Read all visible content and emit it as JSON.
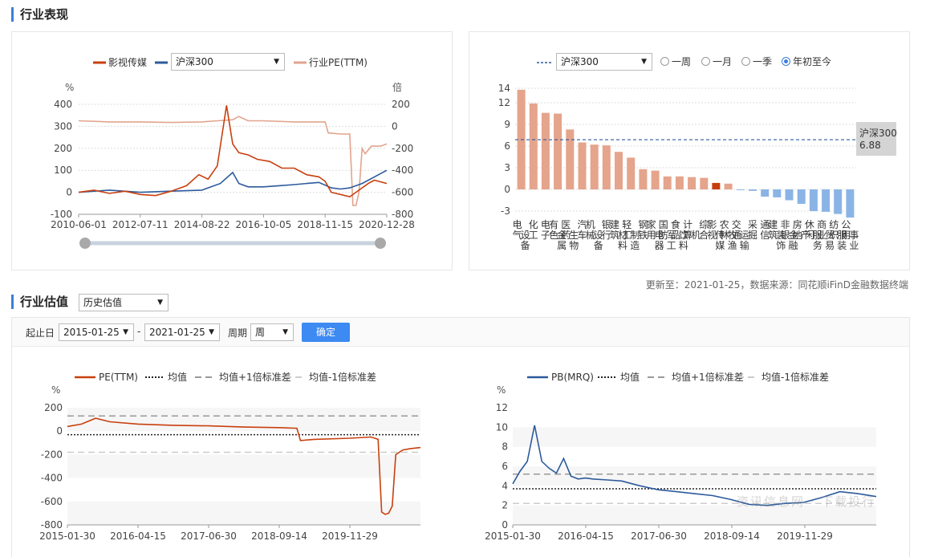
{
  "sections": {
    "performance_title": "行业表现",
    "valuation_title": "行业估值",
    "valuation_select": "历史估值"
  },
  "left_panel": {
    "legend": {
      "industry": "影视传媒",
      "index_select": "沪深300",
      "pe": "行业PE(TTM)"
    },
    "left_unit": "%",
    "right_unit": "倍",
    "colors": {
      "industry": "#c8400f",
      "index": "#2c5a9c",
      "pe": "#e2a48e"
    }
  },
  "right_panel": {
    "legend_index": "沪深300",
    "radios": [
      "一周",
      "一月",
      "一季",
      "年初至今"
    ],
    "selected_radio": "年初至今",
    "ref_label": "沪深300",
    "ref_value": "6.88",
    "colors": {
      "positive": "#e5a48c",
      "highlight": "#c63d0d",
      "negative": "#8ab4e6"
    }
  },
  "footnote": "更新至：2021-01-25，数据来源：同花顺iFinD金融数据终端",
  "controls": {
    "start_label": "起止日",
    "start_date": "2015-01-25",
    "dash": "-",
    "end_date": "2021-01-25",
    "period_label": "周期",
    "period_value": "周",
    "confirm": "确定"
  },
  "pe_chart_legend": {
    "series": "PE(TTM)",
    "mean": "均值",
    "plus": "均值+1倍标准差",
    "minus": "均值-1倍标准差",
    "unit": "%"
  },
  "pb_chart_legend": {
    "series": "PB(MRQ)",
    "mean": "均值",
    "plus": "均值+1倍标准差",
    "minus": "均值-1倍标准差",
    "unit": "%"
  },
  "watermark": "资讯信息网 · 下载投行",
  "chart_data": [
    {
      "type": "line",
      "title": "",
      "x_ticks": [
        "2010-06-01",
        "2012-07-11",
        "2014-08-22",
        "2016-10-05",
        "2018-11-15",
        "2020-12-28"
      ],
      "ylim_left": [
        -100,
        400
      ],
      "y_ticks_left": [
        -100,
        0,
        100,
        200,
        300,
        400
      ],
      "ylim_right": [
        -800,
        200
      ],
      "y_ticks_right": [
        -800,
        -600,
        -400,
        -200,
        0,
        200
      ],
      "series": [
        {
          "name": "影视传媒",
          "axis": "left",
          "x": [
            0,
            0.05,
            0.1,
            0.15,
            0.2,
            0.25,
            0.3,
            0.35,
            0.39,
            0.42,
            0.45,
            0.48,
            0.5,
            0.52,
            0.55,
            0.58,
            0.62,
            0.66,
            0.7,
            0.74,
            0.78,
            0.8,
            0.82,
            0.85,
            0.88,
            0.9,
            0.92,
            0.94,
            0.96,
            1.0
          ],
          "y": [
            0,
            10,
            -5,
            5,
            -10,
            -15,
            5,
            30,
            80,
            60,
            120,
            395,
            220,
            180,
            170,
            150,
            140,
            110,
            110,
            80,
            70,
            50,
            0,
            -10,
            -20,
            0,
            20,
            40,
            55,
            40
          ]
        },
        {
          "name": "沪深300",
          "axis": "left",
          "x": [
            0,
            0.1,
            0.2,
            0.3,
            0.4,
            0.46,
            0.5,
            0.52,
            0.55,
            0.6,
            0.65,
            0.7,
            0.74,
            0.78,
            0.82,
            0.85,
            0.88,
            0.92,
            0.96,
            1.0
          ],
          "y": [
            0,
            10,
            0,
            5,
            10,
            40,
            90,
            40,
            25,
            25,
            30,
            35,
            40,
            45,
            20,
            15,
            20,
            40,
            70,
            100
          ]
        },
        {
          "name": "行业PE(TTM)",
          "axis": "right",
          "x": [
            0,
            0.1,
            0.2,
            0.3,
            0.4,
            0.45,
            0.5,
            0.52,
            0.55,
            0.6,
            0.7,
            0.8,
            0.81,
            0.85,
            0.88,
            0.89,
            0.9,
            0.91,
            0.92,
            0.93,
            0.95,
            0.98,
            1.0
          ],
          "y": [
            50,
            40,
            40,
            35,
            40,
            50,
            60,
            90,
            50,
            50,
            40,
            40,
            -60,
            -70,
            -70,
            -720,
            -720,
            -600,
            -200,
            -250,
            -180,
            -180,
            -160
          ]
        }
      ]
    },
    {
      "type": "bar",
      "title": "",
      "categories": [
        "电气设备",
        "化工",
        "电子",
        "有色金属",
        "医药生物",
        "汽车",
        "机械设备",
        "银行",
        "建筑材料",
        "轻工制造",
        "钢铁",
        "家用电器",
        "国防军工",
        "食品饮料",
        "计算机",
        "综合",
        "影视传媒",
        "农林牧渔",
        "交通运输",
        "采掘",
        "通信",
        "建筑装饰",
        "非银金融",
        "房地产",
        "休闲服务",
        "商业贸易",
        "纺织服装",
        "公用事业"
      ],
      "values": [
        13.8,
        11.9,
        10.6,
        10.5,
        8.3,
        6.5,
        6.2,
        6.1,
        5.2,
        4.4,
        2.8,
        2.6,
        1.8,
        1.8,
        1.7,
        1.6,
        0.9,
        0.8,
        -0.1,
        -0.2,
        -1.0,
        -1.1,
        -1.5,
        -2.0,
        -3.0,
        -3.1,
        -3.4,
        -3.9
      ],
      "highlight": "影视传媒",
      "reference": {
        "name": "沪深300",
        "value": 6.88
      },
      "ylim": [
        -3,
        14
      ],
      "y_ticks": [
        -3,
        0,
        3,
        6,
        9,
        12,
        14
      ]
    },
    {
      "type": "line",
      "title": "",
      "x_ticks": [
        "2015-01-30",
        "2016-04-15",
        "2017-06-30",
        "2018-09-14",
        "2019-11-29"
      ],
      "ylim": [
        -800,
        200
      ],
      "y_ticks": [
        -800,
        -600,
        -400,
        -200,
        0,
        200
      ],
      "mean": -30,
      "plus_1sd": 130,
      "minus_1sd": -180,
      "series": [
        {
          "name": "PE(TTM)",
          "x": [
            0,
            0.04,
            0.08,
            0.12,
            0.2,
            0.3,
            0.4,
            0.5,
            0.6,
            0.65,
            0.66,
            0.7,
            0.8,
            0.86,
            0.88,
            0.89,
            0.9,
            0.91,
            0.92,
            0.93,
            0.95,
            0.97,
            1.0
          ],
          "y": [
            40,
            60,
            110,
            80,
            60,
            50,
            45,
            35,
            30,
            25,
            -80,
            -70,
            -60,
            -50,
            -70,
            -690,
            -710,
            -700,
            -640,
            -200,
            -160,
            -150,
            -140
          ]
        },
        {
          "name": "均值",
          "y": -30
        },
        {
          "name": "均值+1倍标准差",
          "y": 130
        },
        {
          "name": "均值-1倍标准差",
          "y": -180
        }
      ]
    },
    {
      "type": "line",
      "title": "",
      "x_ticks": [
        "2015-01-30",
        "2016-04-15",
        "2017-06-30",
        "2018-09-14",
        "2019-11-29"
      ],
      "ylim": [
        0,
        12
      ],
      "y_ticks": [
        0,
        2,
        4,
        6,
        8,
        10,
        12
      ],
      "mean": 3.7,
      "plus_1sd": 5.2,
      "minus_1sd": 2.2,
      "series": [
        {
          "name": "PB(MRQ)",
          "x": [
            0,
            0.02,
            0.04,
            0.06,
            0.08,
            0.1,
            0.12,
            0.14,
            0.16,
            0.18,
            0.2,
            0.22,
            0.26,
            0.3,
            0.35,
            0.4,
            0.45,
            0.5,
            0.55,
            0.6,
            0.65,
            0.7,
            0.75,
            0.8,
            0.85,
            0.9,
            0.95,
            1.0
          ],
          "y": [
            4.2,
            5.5,
            6.5,
            10.2,
            6.5,
            5.8,
            5.3,
            6.8,
            5.0,
            4.7,
            4.8,
            4.7,
            4.6,
            4.5,
            4.0,
            3.6,
            3.4,
            3.2,
            3.0,
            2.6,
            2.1,
            2.0,
            2.2,
            2.3,
            2.8,
            3.4,
            3.2,
            2.9
          ]
        },
        {
          "name": "均值",
          "y": 3.7
        },
        {
          "name": "均值+1倍标准差",
          "y": 5.2
        },
        {
          "name": "均值-1倍标准差",
          "y": 2.2
        }
      ]
    }
  ]
}
